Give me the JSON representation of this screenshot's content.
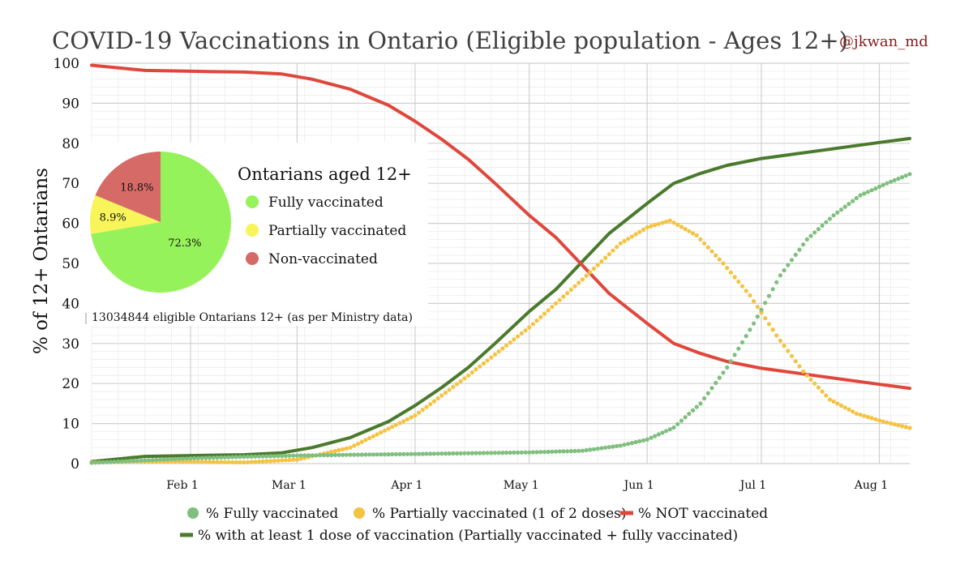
{
  "chart_data": {
    "type": "line",
    "title": "COVID-19 Vaccinations in Ontario (Eligible population - Ages 12+)",
    "handle": "@jkwan_md",
    "ylabel": "% of 12+ Ontarians",
    "xlabel": "",
    "ylim": [
      0,
      100
    ],
    "yticks": [
      0,
      10,
      20,
      30,
      40,
      50,
      60,
      70,
      80,
      90,
      100
    ],
    "xlim": [
      "2021-01-06",
      "2021-08-09"
    ],
    "xticks": [
      {
        "date": "2021-02-01",
        "label": "Feb 1"
      },
      {
        "date": "2021-03-01",
        "label": "Mar 1"
      },
      {
        "date": "2021-04-01",
        "label": "Apr 1"
      },
      {
        "date": "2021-05-01",
        "label": "May 1"
      },
      {
        "date": "2021-06-01",
        "label": "Jun 1"
      },
      {
        "date": "2021-07-01",
        "label": "Jul 1"
      },
      {
        "date": "2021-08-01",
        "label": "Aug 1"
      }
    ],
    "grid": true,
    "legend_position": "bottom",
    "series": [
      {
        "name": "% Fully vaccinated",
        "style": "dots",
        "color": "#7fbf7f",
        "points": [
          [
            "2021-01-06",
            0.2
          ],
          [
            "2021-01-20",
            0.8
          ],
          [
            "2021-02-01",
            1.3
          ],
          [
            "2021-02-15",
            1.7
          ],
          [
            "2021-03-01",
            2.0
          ],
          [
            "2021-03-15",
            2.2
          ],
          [
            "2021-04-01",
            2.4
          ],
          [
            "2021-04-15",
            2.6
          ],
          [
            "2021-05-01",
            2.8
          ],
          [
            "2021-05-15",
            3.2
          ],
          [
            "2021-05-25",
            4.5
          ],
          [
            "2021-06-01",
            6.0
          ],
          [
            "2021-06-08",
            9.0
          ],
          [
            "2021-06-15",
            15.0
          ],
          [
            "2021-06-22",
            24.0
          ],
          [
            "2021-06-29",
            35.0
          ],
          [
            "2021-07-06",
            47.0
          ],
          [
            "2021-07-13",
            56.0
          ],
          [
            "2021-07-20",
            62.0
          ],
          [
            "2021-07-27",
            67.0
          ],
          [
            "2021-08-03",
            70.0
          ],
          [
            "2021-08-09",
            72.3
          ]
        ]
      },
      {
        "name": "% Partially vaccinated (1 of 2 doses)",
        "style": "dots",
        "color": "#f5c342",
        "points": [
          [
            "2021-01-06",
            0.3
          ],
          [
            "2021-01-20",
            0.5
          ],
          [
            "2021-02-01",
            0.5
          ],
          [
            "2021-02-15",
            0.3
          ],
          [
            "2021-03-01",
            1.0
          ],
          [
            "2021-03-15",
            4.0
          ],
          [
            "2021-04-01",
            12.0
          ],
          [
            "2021-04-15",
            22.0
          ],
          [
            "2021-05-01",
            34.0
          ],
          [
            "2021-05-15",
            46.0
          ],
          [
            "2021-05-25",
            55.0
          ],
          [
            "2021-06-01",
            59.0
          ],
          [
            "2021-06-07",
            60.7
          ],
          [
            "2021-06-14",
            57.0
          ],
          [
            "2021-06-21",
            50.0
          ],
          [
            "2021-06-28",
            42.0
          ],
          [
            "2021-07-05",
            32.0
          ],
          [
            "2021-07-12",
            23.0
          ],
          [
            "2021-07-19",
            16.0
          ],
          [
            "2021-07-26",
            12.5
          ],
          [
            "2021-08-02",
            10.5
          ],
          [
            "2021-08-09",
            8.9
          ]
        ]
      },
      {
        "name": "% NOT vaccinated",
        "style": "line",
        "color": "#e0473c",
        "points": [
          [
            "2021-01-06",
            99.5
          ],
          [
            "2021-01-20",
            98.2
          ],
          [
            "2021-02-01",
            98.0
          ],
          [
            "2021-02-15",
            97.8
          ],
          [
            "2021-02-25",
            97.3
          ],
          [
            "2021-03-05",
            96.0
          ],
          [
            "2021-03-15",
            93.5
          ],
          [
            "2021-03-25",
            89.5
          ],
          [
            "2021-04-01",
            85.5
          ],
          [
            "2021-04-08",
            81.0
          ],
          [
            "2021-04-15",
            76.0
          ],
          [
            "2021-04-22",
            70.0
          ],
          [
            "2021-05-01",
            62.0
          ],
          [
            "2021-05-08",
            56.5
          ],
          [
            "2021-05-15",
            49.5
          ],
          [
            "2021-05-22",
            42.5
          ],
          [
            "2021-06-01",
            35.0
          ],
          [
            "2021-06-08",
            30.0
          ],
          [
            "2021-06-15",
            27.5
          ],
          [
            "2021-06-22",
            25.5
          ],
          [
            "2021-07-01",
            23.8
          ],
          [
            "2021-07-15",
            22.0
          ],
          [
            "2021-08-01",
            19.8
          ],
          [
            "2021-08-09",
            18.8
          ]
        ]
      },
      {
        "name": "% with at least 1 dose of vaccination (Partially vaccinated + fully vaccinated)",
        "style": "line",
        "color": "#4a7a2c",
        "points": [
          [
            "2021-01-06",
            0.5
          ],
          [
            "2021-01-20",
            1.8
          ],
          [
            "2021-02-01",
            2.0
          ],
          [
            "2021-02-15",
            2.2
          ],
          [
            "2021-02-25",
            2.7
          ],
          [
            "2021-03-05",
            4.0
          ],
          [
            "2021-03-15",
            6.5
          ],
          [
            "2021-03-25",
            10.5
          ],
          [
            "2021-04-01",
            14.5
          ],
          [
            "2021-04-08",
            19.0
          ],
          [
            "2021-04-15",
            24.0
          ],
          [
            "2021-04-22",
            30.0
          ],
          [
            "2021-05-01",
            38.0
          ],
          [
            "2021-05-08",
            43.5
          ],
          [
            "2021-05-15",
            50.5
          ],
          [
            "2021-05-22",
            57.5
          ],
          [
            "2021-06-01",
            65.0
          ],
          [
            "2021-06-08",
            70.0
          ],
          [
            "2021-06-15",
            72.5
          ],
          [
            "2021-06-22",
            74.5
          ],
          [
            "2021-07-01",
            76.2
          ],
          [
            "2021-07-15",
            78.0
          ],
          [
            "2021-08-01",
            80.2
          ],
          [
            "2021-08-09",
            81.2
          ]
        ]
      }
    ],
    "inset_pie": {
      "title": "Ontarians aged 12+",
      "slices": [
        {
          "label": "Fully vaccinated",
          "value": 72.3,
          "text": "72.3%",
          "color": "#96f25a"
        },
        {
          "label": "Partially vaccinated",
          "value": 8.9,
          "text": "8.9%",
          "color": "#f7f55a"
        },
        {
          "label": "Non-vaccinated",
          "value": 18.8,
          "text": "18.8%",
          "color": "#d56a66"
        }
      ],
      "footnote": "13034844 eligible Ontarians 12+ (as per Ministry data)"
    }
  }
}
